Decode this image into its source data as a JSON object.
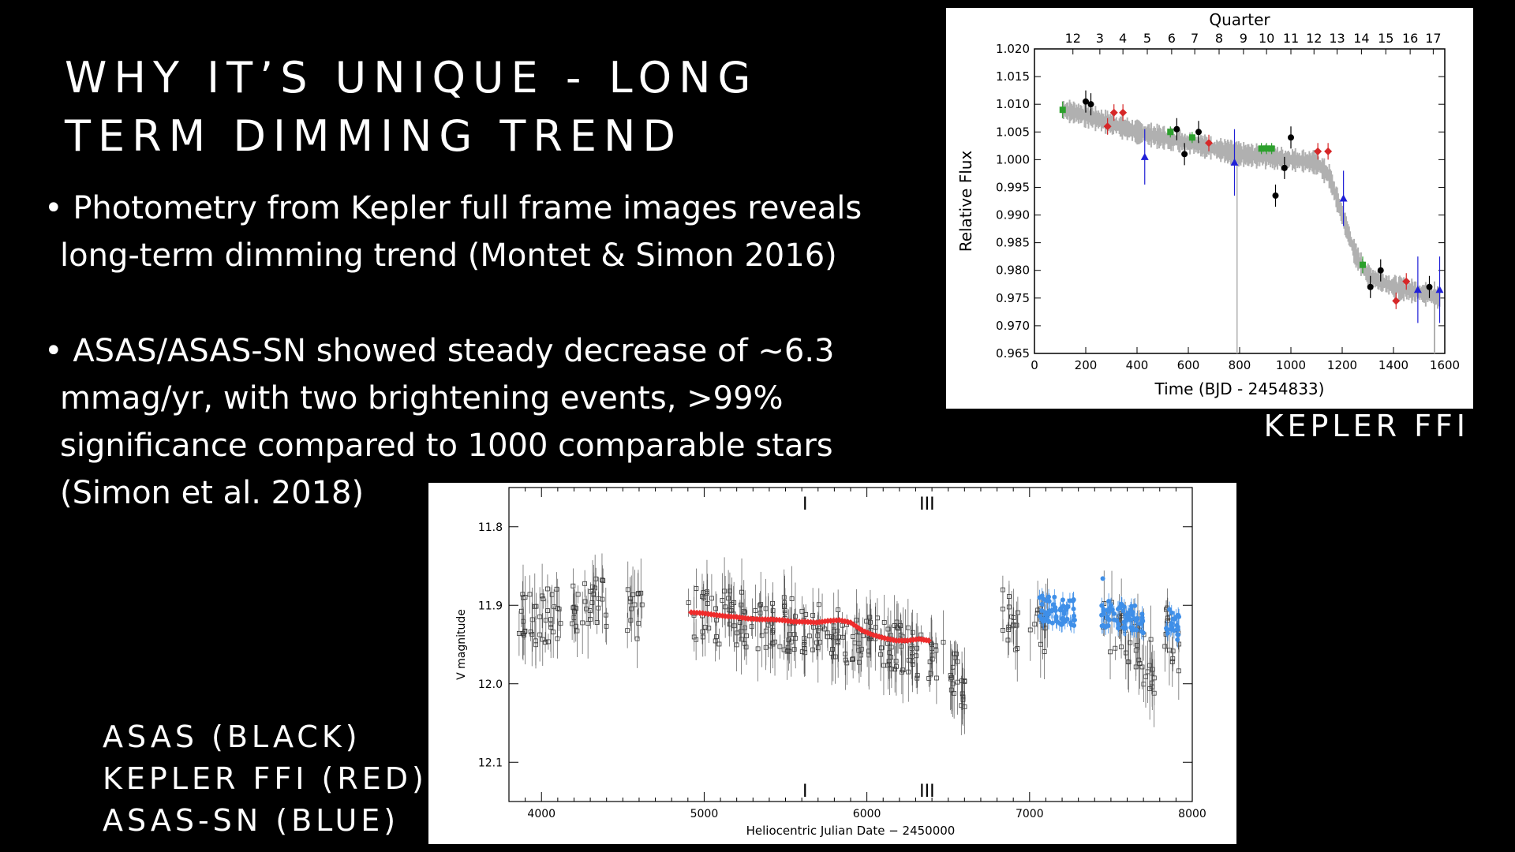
{
  "slide": {
    "title_line1": "WHY IT’S UNIQUE - LONG",
    "title_line2": "TERM DIMMING TREND",
    "bullets": [
      {
        "mark": "•",
        "text": "Photometry from Kepler full frame images reveals long-term dimming trend (Montet & Simon 2016)"
      },
      {
        "mark": "•",
        "text": "ASAS/ASAS-SN showed steady decrease of ~6.3 mmag/yr, with two brightening events, >99% significance compared to 1000 comparable stars (Simon et al. 2018)"
      }
    ],
    "kepler_caption": "KEPLER FFI",
    "legend_notes": [
      "ASAS (BLACK)",
      "KEPLER FFI (RED)",
      "ASAS-SN (BLUE)"
    ]
  },
  "colors": {
    "background": "#000000",
    "text": "#ffffff",
    "kepler_red": "#d62728",
    "kepler_green": "#2ca02c",
    "kepler_blue": "#1f1fd6",
    "asas_black": "#333333",
    "ffi_red": "#ee2c2c",
    "asassn_blue": "#3f8fe8"
  },
  "chart_data": [
    {
      "type": "scatter",
      "title": "",
      "xlabel": "Time (BJD - 2454833)",
      "ylabel": "Relative Flux",
      "top_axis_label": "Quarter",
      "top_ticks": [
        {
          "label": "12",
          "x": 150
        },
        {
          "label": "3",
          "x": 255
        },
        {
          "label": "4",
          "x": 345
        },
        {
          "label": "5",
          "x": 440
        },
        {
          "label": "6",
          "x": 535
        },
        {
          "label": "7",
          "x": 625
        },
        {
          "label": "8",
          "x": 720
        },
        {
          "label": "9",
          "x": 815
        },
        {
          "label": "10",
          "x": 905
        },
        {
          "label": "11",
          "x": 1000
        },
        {
          "label": "12",
          "x": 1090
        },
        {
          "label": "13",
          "x": 1180
        },
        {
          "label": "14",
          "x": 1275
        },
        {
          "label": "15",
          "x": 1370
        },
        {
          "label": "16",
          "x": 1465
        },
        {
          "label": "17",
          "x": 1555
        }
      ],
      "xlim": [
        0,
        1600
      ],
      "ylim": [
        0.965,
        1.02
      ],
      "xticks": [
        0,
        200,
        400,
        600,
        800,
        1000,
        1200,
        1400,
        1600
      ],
      "xtick_labels": [
        "0",
        "200",
        "400",
        "600",
        "800",
        "1000",
        "1200",
        "1400",
        "1600"
      ],
      "yticks": [
        0.965,
        0.97,
        0.975,
        0.98,
        0.985,
        0.99,
        0.995,
        1.0,
        1.005,
        1.01,
        1.015,
        1.02
      ],
      "ytick_labels": [
        "0.965",
        "0.970",
        "0.975",
        "0.980",
        "0.985",
        "0.990",
        "0.995",
        "1.000",
        "1.005",
        "1.010",
        "1.015",
        "1.020"
      ],
      "grid": false,
      "trend_band": {
        "name": "",
        "color": "#b0b0b0",
        "x": [
          110,
          200,
          300,
          400,
          500,
          600,
          700,
          800,
          900,
          1000,
          1100,
          1150,
          1200,
          1250,
          1300,
          1350,
          1400,
          1450,
          1500,
          1580
        ],
        "y": [
          1.009,
          1.008,
          1.0065,
          1.005,
          1.004,
          1.003,
          1.002,
          1.001,
          1.0005,
          1.0,
          0.9995,
          0.997,
          0.99,
          0.983,
          0.979,
          0.978,
          0.977,
          0.9765,
          0.976,
          0.975
        ]
      },
      "series": [
        {
          "name": "",
          "color": "#2ca02c",
          "marker": "square",
          "x": [
            110,
            530,
            615,
            885,
            905,
            925,
            1280
          ],
          "y": [
            1.009,
            1.005,
            1.004,
            1.002,
            1.002,
            1.002,
            0.981
          ],
          "err": [
            0.0015,
            0.001,
            0.001,
            0.001,
            0.001,
            0.001,
            0.0015
          ]
        },
        {
          "name": "",
          "color": "#000000",
          "marker": "circle",
          "x": [
            200,
            220,
            555,
            585,
            640,
            940,
            975,
            1000,
            1310,
            1350,
            1540
          ],
          "y": [
            1.0105,
            1.01,
            1.0055,
            1.001,
            1.005,
            0.9935,
            0.9985,
            1.004,
            0.977,
            0.98,
            0.977
          ],
          "err": [
            0.002,
            0.002,
            0.002,
            0.002,
            0.002,
            0.002,
            0.002,
            0.002,
            0.002,
            0.002,
            0.002
          ]
        },
        {
          "name": "",
          "color": "#d62728",
          "marker": "diamond",
          "x": [
            285,
            310,
            345,
            680,
            1105,
            1145,
            1410,
            1450
          ],
          "y": [
            1.006,
            1.0085,
            1.0085,
            1.003,
            1.0015,
            1.0015,
            0.9745,
            0.978
          ],
          "err": [
            0.0015,
            0.0015,
            0.0015,
            0.0015,
            0.0015,
            0.0015,
            0.0015,
            0.0015
          ]
        },
        {
          "name": "",
          "color": "#1f1fd6",
          "marker": "triangle",
          "x": [
            430,
            780,
            1205,
            1495,
            1580
          ],
          "y": [
            1.0005,
            0.9995,
            0.993,
            0.9765,
            0.9765
          ],
          "err": [
            0.005,
            0.006,
            0.005,
            0.006,
            0.006
          ]
        }
      ]
    },
    {
      "type": "scatter",
      "title": "",
      "xlabel": "Heliocentric Julian Date − 2450000",
      "ylabel": "V magnitude",
      "xlim": [
        3800,
        8000
      ],
      "ylim": [
        12.15,
        11.75
      ],
      "xticks": [
        4000,
        5000,
        6000,
        7000,
        8000
      ],
      "xtick_labels": [
        "4000",
        "5000",
        "6000",
        "7000",
        "8000"
      ],
      "yticks": [
        11.8,
        11.9,
        12.0,
        12.1
      ],
      "ytick_labels": [
        "11.8",
        "11.9",
        "12.0",
        "12.1"
      ],
      "grid": false,
      "annotations": [
        {
          "text": "I",
          "x": 5620
        },
        {
          "text": "III",
          "x": 6370
        }
      ],
      "series": [
        {
          "name": "",
          "color": "#333333",
          "marker": "open-square",
          "segments": [
            {
              "x0": 3860,
              "x1": 4130,
              "y0": 11.92,
              "y1": 11.91,
              "n": 40
            },
            {
              "x0": 4180,
              "x1": 4400,
              "y0": 11.9,
              "y1": 11.9,
              "n": 32
            },
            {
              "x0": 4500,
              "x1": 4620,
              "y0": 11.91,
              "y1": 11.92,
              "n": 14
            },
            {
              "x0": 4900,
              "x1": 5700,
              "y0": 11.91,
              "y1": 11.93,
              "n": 110
            },
            {
              "x0": 5700,
              "x1": 6470,
              "y0": 11.93,
              "y1": 11.97,
              "n": 110
            },
            {
              "x0": 6500,
              "x1": 6620,
              "y0": 11.98,
              "y1": 12.0,
              "n": 20
            },
            {
              "x0": 6820,
              "x1": 6940,
              "y0": 11.91,
              "y1": 11.94,
              "n": 16
            },
            {
              "x0": 7000,
              "x1": 7120,
              "y0": 11.92,
              "y1": 11.93,
              "n": 14
            },
            {
              "x0": 7450,
              "x1": 7780,
              "y0": 11.92,
              "y1": 11.98,
              "n": 40
            },
            {
              "x0": 7830,
              "x1": 7940,
              "y0": 11.93,
              "y1": 11.97,
              "n": 14
            }
          ]
        },
        {
          "name": "",
          "color": "#ee2c2c",
          "marker": "filled-diamond",
          "x": [
            4920,
            4990,
            5060,
            5130,
            5200,
            5270,
            5340,
            5410,
            5480,
            5550,
            5620,
            5690,
            5760,
            5830,
            5900,
            5970,
            6040,
            6110,
            6180,
            6250,
            6320,
            6380
          ],
          "y": [
            11.909,
            11.91,
            11.912,
            11.914,
            11.915,
            11.917,
            11.918,
            11.918,
            11.919,
            11.921,
            11.921,
            11.922,
            11.92,
            11.919,
            11.922,
            11.932,
            11.938,
            11.942,
            11.945,
            11.945,
            11.943,
            11.945
          ]
        },
        {
          "name": "",
          "color": "#3f8fe8",
          "marker": "filled-circle",
          "segments": [
            {
              "x0": 7060,
              "x1": 7280,
              "y0": 11.905,
              "y1": 11.91,
              "n": 60
            },
            {
              "x0": 7440,
              "x1": 7700,
              "y0": 11.91,
              "y1": 11.92,
              "n": 65
            },
            {
              "x0": 7840,
              "x1": 7920,
              "y0": 11.92,
              "y1": 11.93,
              "n": 22
            }
          ],
          "outliers": [
            {
              "x": 7450,
              "y": 11.866
            }
          ]
        }
      ]
    }
  ]
}
